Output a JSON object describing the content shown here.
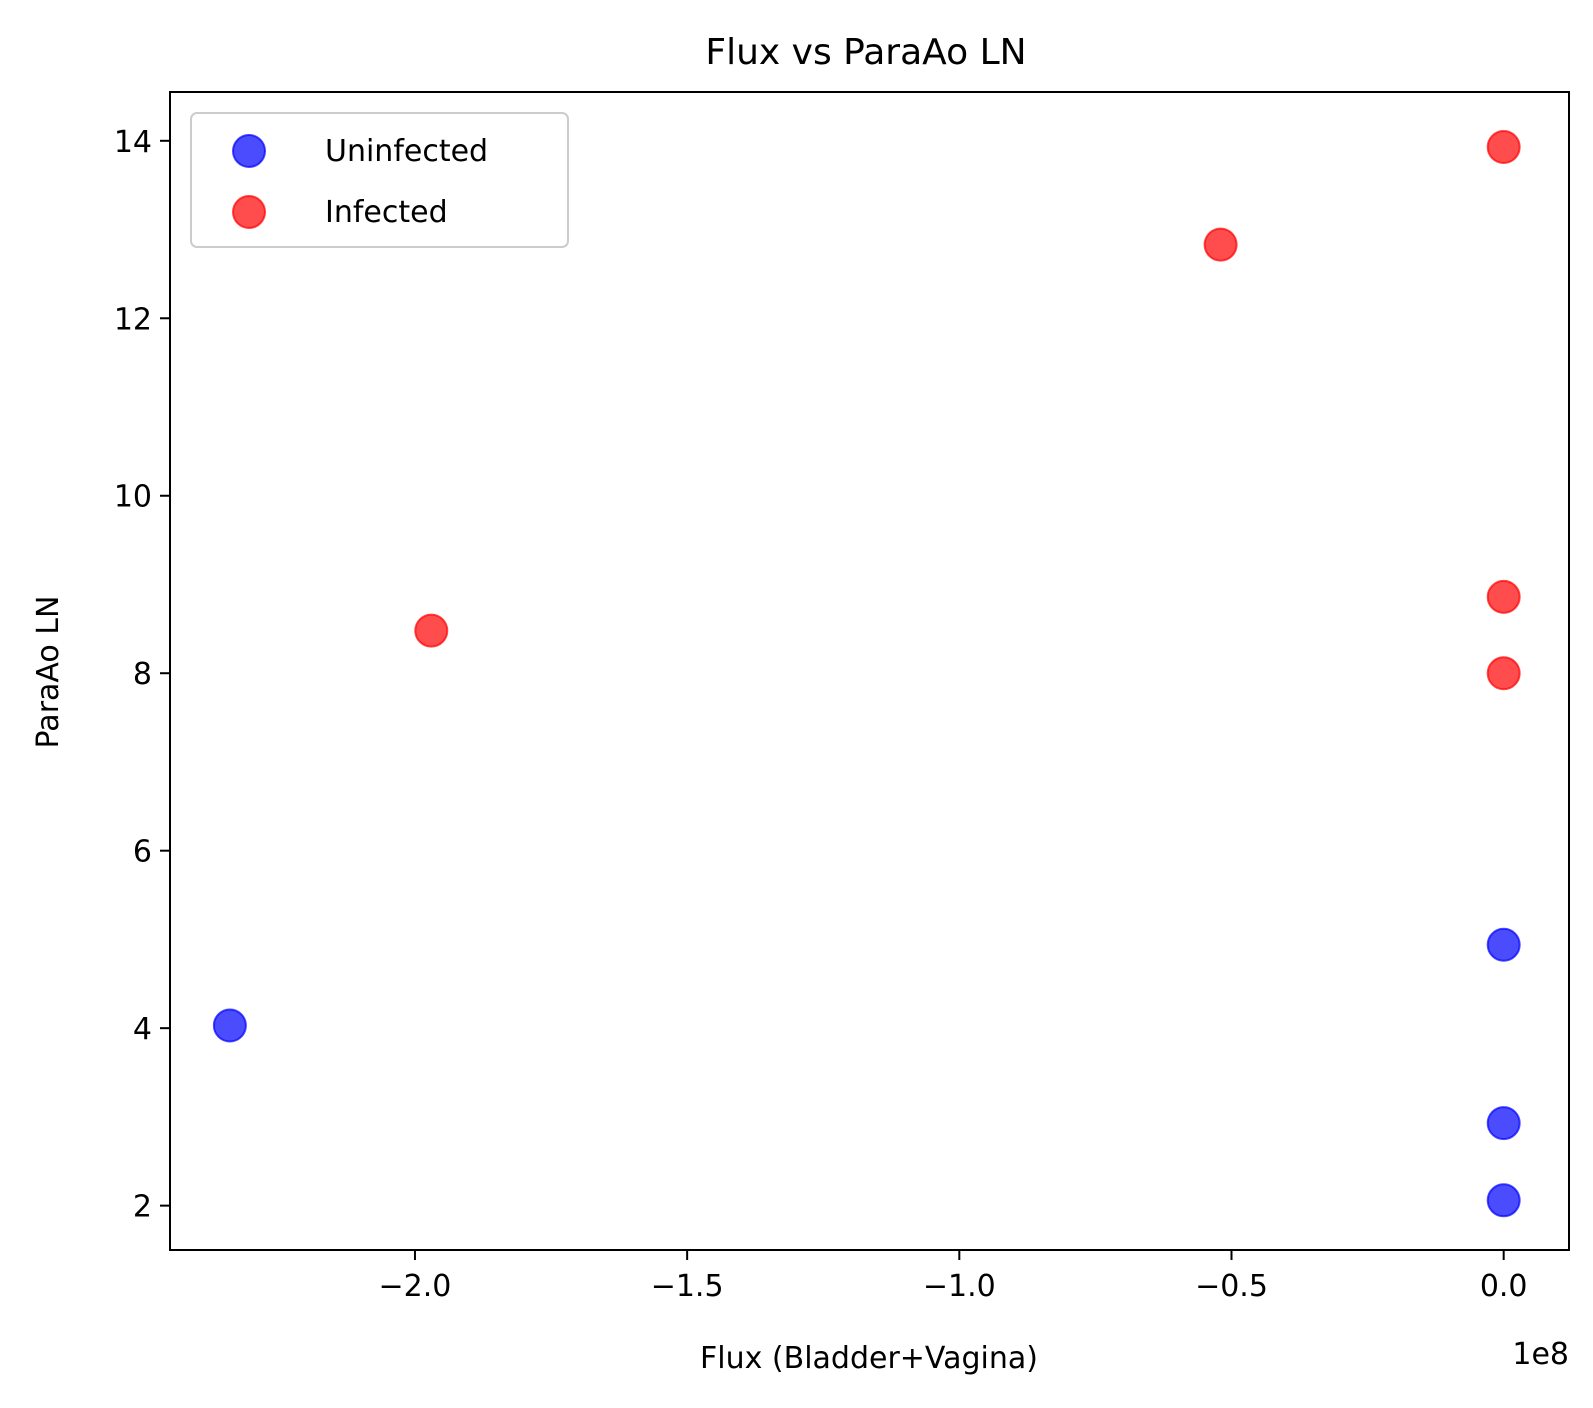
{
  "chart_data": {
    "type": "scatter",
    "title": "Flux vs ParaAo LN",
    "xlabel": "Flux (Bladder+Vagina)",
    "ylabel": "ParaAo LN",
    "x_offset_text": "1e8",
    "xlim": [
      -2.45,
      0.12
    ],
    "ylim": [
      1.5,
      14.55
    ],
    "x_ticks": [
      -2.0,
      -1.5,
      -1.0,
      -0.5,
      0.0
    ],
    "x_tick_labels": [
      "−2.0",
      "−1.5",
      "−1.0",
      "−0.5",
      "0.0"
    ],
    "y_ticks": [
      2,
      4,
      6,
      8,
      10,
      12,
      14
    ],
    "y_tick_labels": [
      "2",
      "4",
      "6",
      "8",
      "10",
      "12",
      "14"
    ],
    "grid": false,
    "legend_position": "upper-left",
    "series": [
      {
        "name": "Uninfected",
        "color": "#0000ff",
        "alpha": 0.7,
        "points": [
          {
            "x": -2.34,
            "y": 4.03
          },
          {
            "x": 0.0,
            "y": 4.94
          },
          {
            "x": 0.0,
            "y": 2.93
          },
          {
            "x": 0.0,
            "y": 2.06
          }
        ]
      },
      {
        "name": "Infected",
        "color": "#ff0000",
        "alpha": 0.7,
        "points": [
          {
            "x": -1.97,
            "y": 8.48
          },
          {
            "x": -0.52,
            "y": 12.83
          },
          {
            "x": 0.0,
            "y": 13.93
          },
          {
            "x": 0.0,
            "y": 8.86
          },
          {
            "x": 0.0,
            "y": 8.0
          }
        ]
      }
    ]
  }
}
